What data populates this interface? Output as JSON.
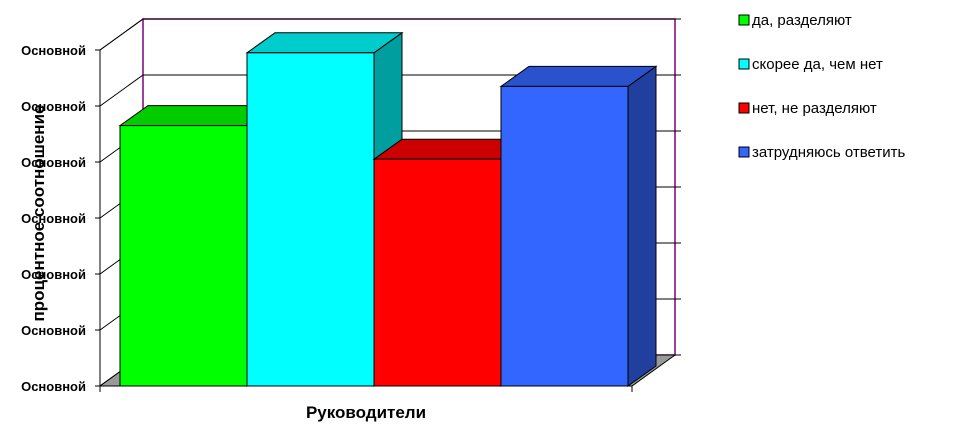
{
  "chart_data": {
    "type": "bar",
    "style": "3d-clustered-column",
    "title": "",
    "xlabel": "Руководители",
    "ylabel": "процентное соотношение",
    "categories": [
      "Руководители"
    ],
    "y_tick_labels": [
      "Основной",
      "Основной",
      "Основной",
      "Основной",
      "Основной",
      "Основной",
      "Основной"
    ],
    "ylim": [
      0,
      6
    ],
    "grid": true,
    "legend_position": "right",
    "series": [
      {
        "name": "да, разделяют",
        "values": [
          4.65
        ],
        "color": "#00ff00"
      },
      {
        "name": "скорее да, чем нет",
        "values": [
          5.95
        ],
        "color": "#00ffff"
      },
      {
        "name": "нет, не разделяют",
        "values": [
          4.05
        ],
        "color": "#ff0000"
      },
      {
        "name": "затрудняюсь ответить",
        "values": [
          5.35
        ],
        "color": "#3366ff"
      }
    ]
  }
}
